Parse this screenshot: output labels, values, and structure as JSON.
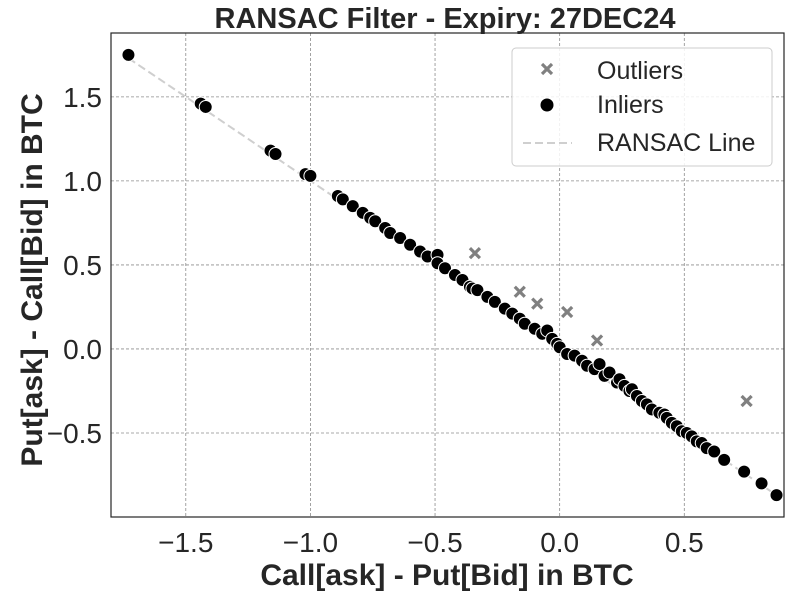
{
  "chart_data": {
    "type": "scatter",
    "title": "RANSAC Filter - Expiry: 27DEC24",
    "xlabel": "Call[ask] - Put[Bid] in BTC",
    "ylabel": "Put[ask] - Call[Bid] in BTC",
    "xlim": [
      -1.8,
      0.9
    ],
    "ylim": [
      -1.0,
      1.88
    ],
    "xticks": [
      -1.5,
      -1.0,
      -0.5,
      0.0,
      0.5
    ],
    "xtick_labels": [
      "−1.5",
      "−1.0",
      "−0.5",
      "0.0",
      "0.5"
    ],
    "yticks": [
      -0.5,
      0.0,
      0.5,
      1.0,
      1.5
    ],
    "ytick_labels": [
      "−0.5",
      "0.0",
      "0.5",
      "1.0",
      "1.5"
    ],
    "grid": true,
    "legend_position": "top-right",
    "colors": {
      "outliers": "#808080",
      "inliers": "#000000",
      "ransac_line": "#cfcfcf",
      "grid": "#8c8c8c",
      "text": "#262626"
    },
    "series": [
      {
        "name": "Outliers",
        "marker": "x",
        "points": [
          [
            -0.34,
            0.57
          ],
          [
            -0.16,
            0.34
          ],
          [
            -0.09,
            0.27
          ],
          [
            0.03,
            0.22
          ],
          [
            0.15,
            0.05
          ],
          [
            0.75,
            -0.31
          ]
        ]
      },
      {
        "name": "Inliers",
        "marker": "circle",
        "points": [
          [
            -1.73,
            1.75
          ],
          [
            -1.44,
            1.46
          ],
          [
            -1.42,
            1.44
          ],
          [
            -1.16,
            1.18
          ],
          [
            -1.14,
            1.16
          ],
          [
            -1.02,
            1.04
          ],
          [
            -1.0,
            1.03
          ],
          [
            -0.89,
            0.91
          ],
          [
            -0.87,
            0.89
          ],
          [
            -0.83,
            0.85
          ],
          [
            -0.79,
            0.81
          ],
          [
            -0.76,
            0.78
          ],
          [
            -0.74,
            0.76
          ],
          [
            -0.7,
            0.72
          ],
          [
            -0.68,
            0.69
          ],
          [
            -0.64,
            0.66
          ],
          [
            -0.6,
            0.62
          ],
          [
            -0.56,
            0.58
          ],
          [
            -0.53,
            0.55
          ],
          [
            -0.49,
            0.56
          ],
          [
            -0.49,
            0.51
          ],
          [
            -0.46,
            0.48
          ],
          [
            -0.42,
            0.44
          ],
          [
            -0.39,
            0.41
          ],
          [
            -0.36,
            0.37
          ],
          [
            -0.35,
            0.36
          ],
          [
            -0.33,
            0.35
          ],
          [
            -0.29,
            0.31
          ],
          [
            -0.26,
            0.28
          ],
          [
            -0.22,
            0.24
          ],
          [
            -0.19,
            0.21
          ],
          [
            -0.16,
            0.18
          ],
          [
            -0.14,
            0.15
          ],
          [
            -0.1,
            0.12
          ],
          [
            -0.07,
            0.09
          ],
          [
            -0.05,
            0.11
          ],
          [
            -0.03,
            0.06
          ],
          [
            -0.01,
            0.03
          ],
          [
            0.0,
            0.01
          ],
          [
            0.03,
            -0.03
          ],
          [
            0.06,
            -0.04
          ],
          [
            0.09,
            -0.07
          ],
          [
            0.11,
            -0.1
          ],
          [
            0.14,
            -0.12
          ],
          [
            0.16,
            -0.09
          ],
          [
            0.18,
            -0.16
          ],
          [
            0.2,
            -0.14
          ],
          [
            0.23,
            -0.2
          ],
          [
            0.24,
            -0.18
          ],
          [
            0.26,
            -0.22
          ],
          [
            0.28,
            -0.25
          ],
          [
            0.29,
            -0.24
          ],
          [
            0.31,
            -0.28
          ],
          [
            0.33,
            -0.31
          ],
          [
            0.35,
            -0.33
          ],
          [
            0.37,
            -0.36
          ],
          [
            0.4,
            -0.38
          ],
          [
            0.42,
            -0.39
          ],
          [
            0.43,
            -0.41
          ],
          [
            0.45,
            -0.44
          ],
          [
            0.47,
            -0.46
          ],
          [
            0.49,
            -0.49
          ],
          [
            0.51,
            -0.5
          ],
          [
            0.53,
            -0.52
          ],
          [
            0.55,
            -0.55
          ],
          [
            0.57,
            -0.56
          ],
          [
            0.59,
            -0.59
          ],
          [
            0.62,
            -0.61
          ],
          [
            0.66,
            -0.66
          ],
          [
            0.74,
            -0.73
          ],
          [
            0.81,
            -0.8
          ],
          [
            0.87,
            -0.87
          ]
        ]
      }
    ],
    "ransac_line": {
      "name": "RANSAC Line",
      "slope": -1.0,
      "intercept": 0.0,
      "x_range": [
        -1.73,
        0.87
      ]
    }
  }
}
